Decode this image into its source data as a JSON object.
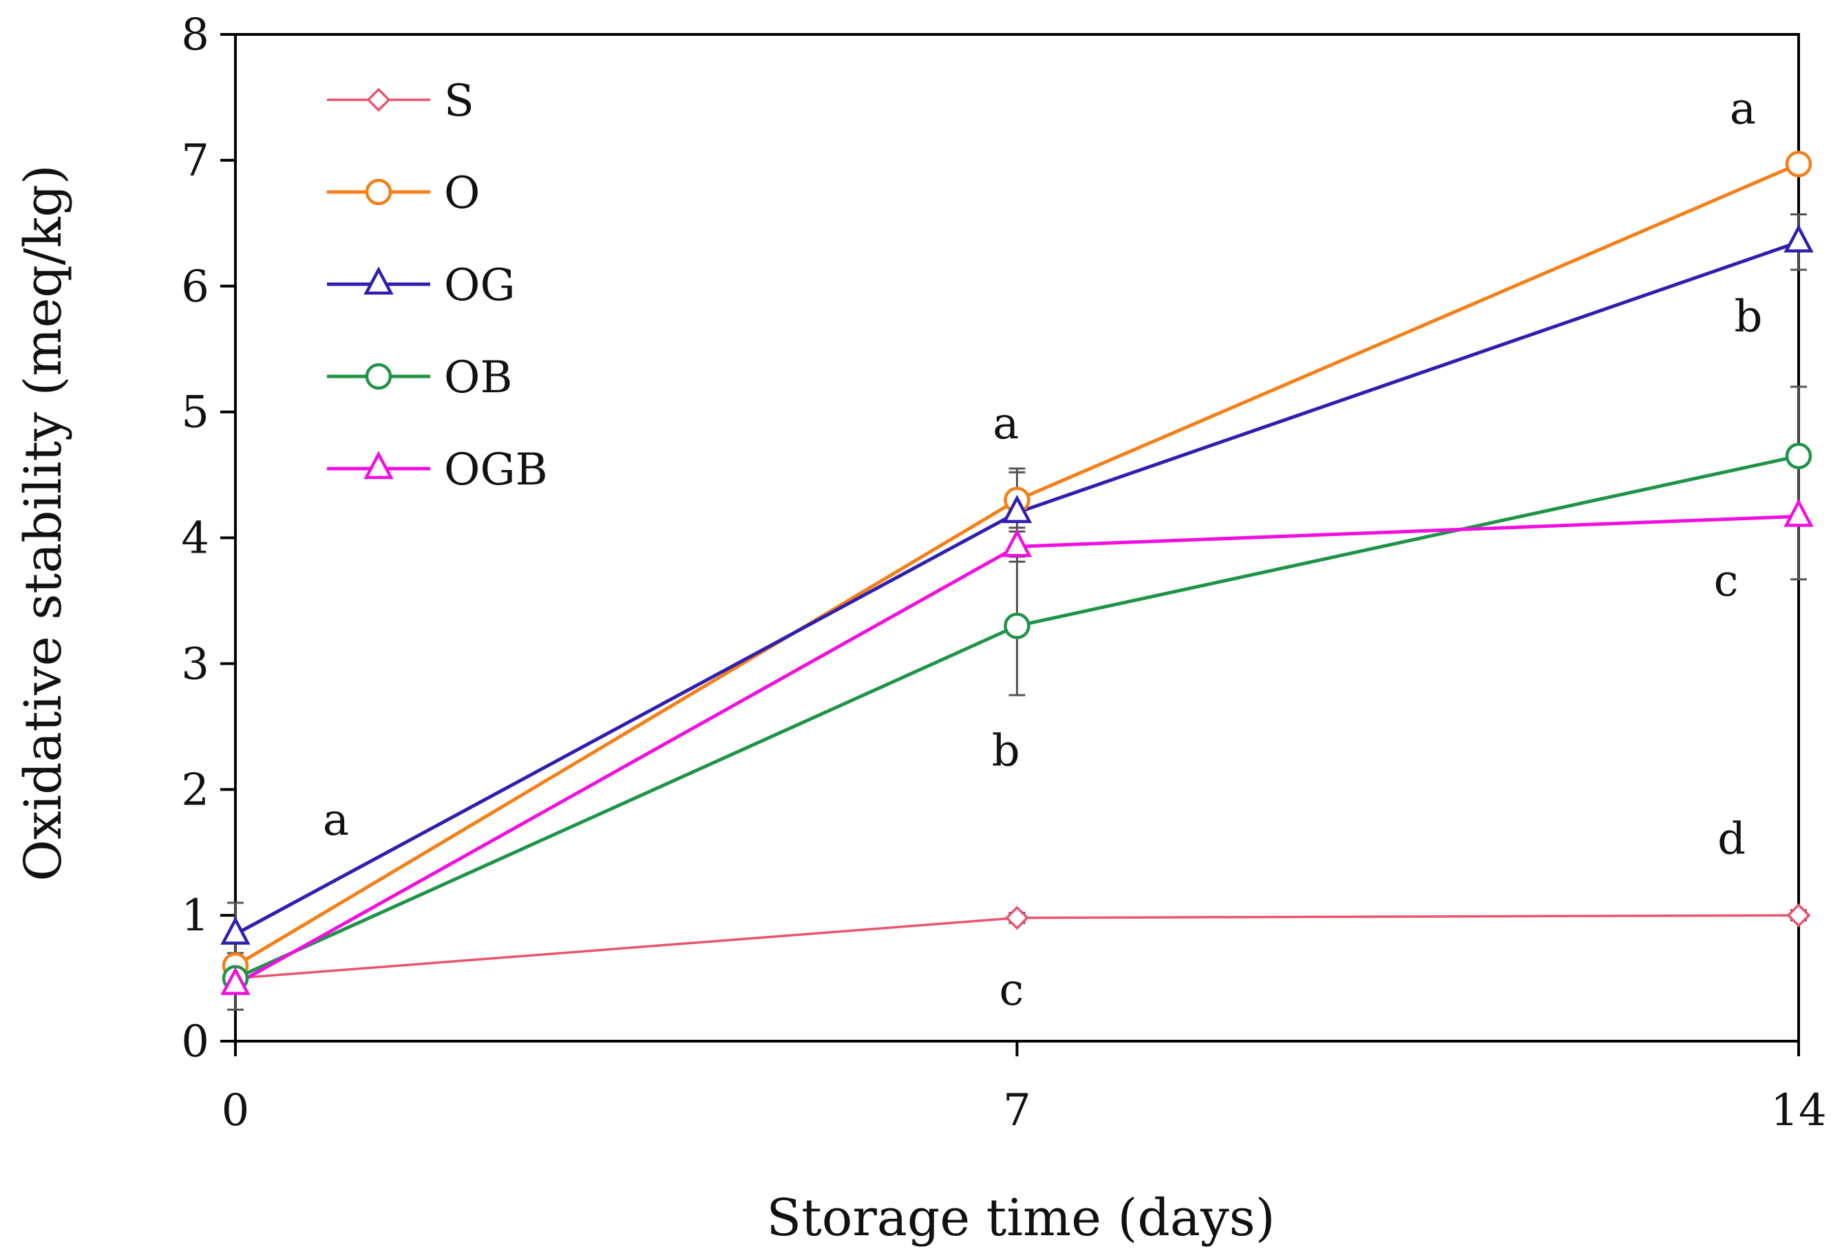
{
  "chart_data": {
    "type": "line",
    "xlabel": "Storage time (days)",
    "ylabel": "Oxidative stability (meq/kg)",
    "x": [
      0,
      7,
      14
    ],
    "xticks": [
      "0",
      "7",
      "14"
    ],
    "yticks": [
      "0",
      "1",
      "2",
      "3",
      "4",
      "5",
      "6",
      "7",
      "8"
    ],
    "xlim": [
      0,
      14
    ],
    "ylim": [
      0,
      8
    ],
    "grid": false,
    "legend_position": "top-left",
    "series": [
      {
        "name": "S",
        "values": [
          0.5,
          0.98,
          1.0
        ],
        "color": "#E8546E",
        "marker": "diamond",
        "errors": [
          0.08,
          0.04,
          0.04
        ]
      },
      {
        "name": "O",
        "values": [
          0.6,
          4.3,
          6.97
        ],
        "color": "#F57F17",
        "marker": "circle",
        "errors": [
          0.1,
          0.22,
          0.05
        ]
      },
      {
        "name": "OG",
        "values": [
          0.85,
          4.2,
          6.35
        ],
        "color": "#2E1FB0",
        "marker": "triangle",
        "errors": [
          0.25,
          0.35,
          0.22
        ]
      },
      {
        "name": "OB",
        "values": [
          0.5,
          3.3,
          4.65
        ],
        "color": "#1E9447",
        "marker": "circle",
        "errors": [
          0.05,
          0.55,
          0.55
        ]
      },
      {
        "name": "OGB",
        "values": [
          0.45,
          3.93,
          4.17
        ],
        "color": "#F00FE0",
        "marker": "triangle",
        "errors": [
          0.2,
          0.12,
          0.5
        ]
      }
    ],
    "annotations": [
      {
        "text": "a",
        "x": 0.9,
        "y": 1.75
      },
      {
        "text": "a",
        "x": 6.9,
        "y": 4.9
      },
      {
        "text": "b",
        "x": 6.9,
        "y": 2.3
      },
      {
        "text": "c",
        "x": 6.95,
        "y": 0.4
      },
      {
        "text": "a",
        "x": 13.5,
        "y": 7.4
      },
      {
        "text": "b",
        "x": 13.55,
        "y": 5.75
      },
      {
        "text": "c",
        "x": 13.35,
        "y": 3.65
      },
      {
        "text": "d",
        "x": 13.4,
        "y": 1.6
      }
    ]
  }
}
